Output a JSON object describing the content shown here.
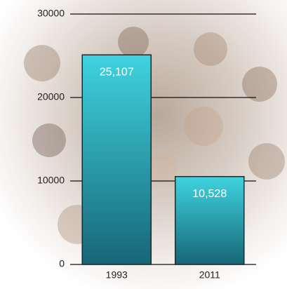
{
  "chart_data": {
    "type": "bar",
    "categories": [
      "1993",
      "2011"
    ],
    "values": [
      25107,
      10528
    ],
    "value_labels": [
      "25,107",
      "10,528"
    ],
    "color": "#3fd3df",
    "ylim": [
      0,
      30000
    ],
    "yticks": [
      0,
      10000,
      20000,
      30000
    ],
    "grid": true
  }
}
